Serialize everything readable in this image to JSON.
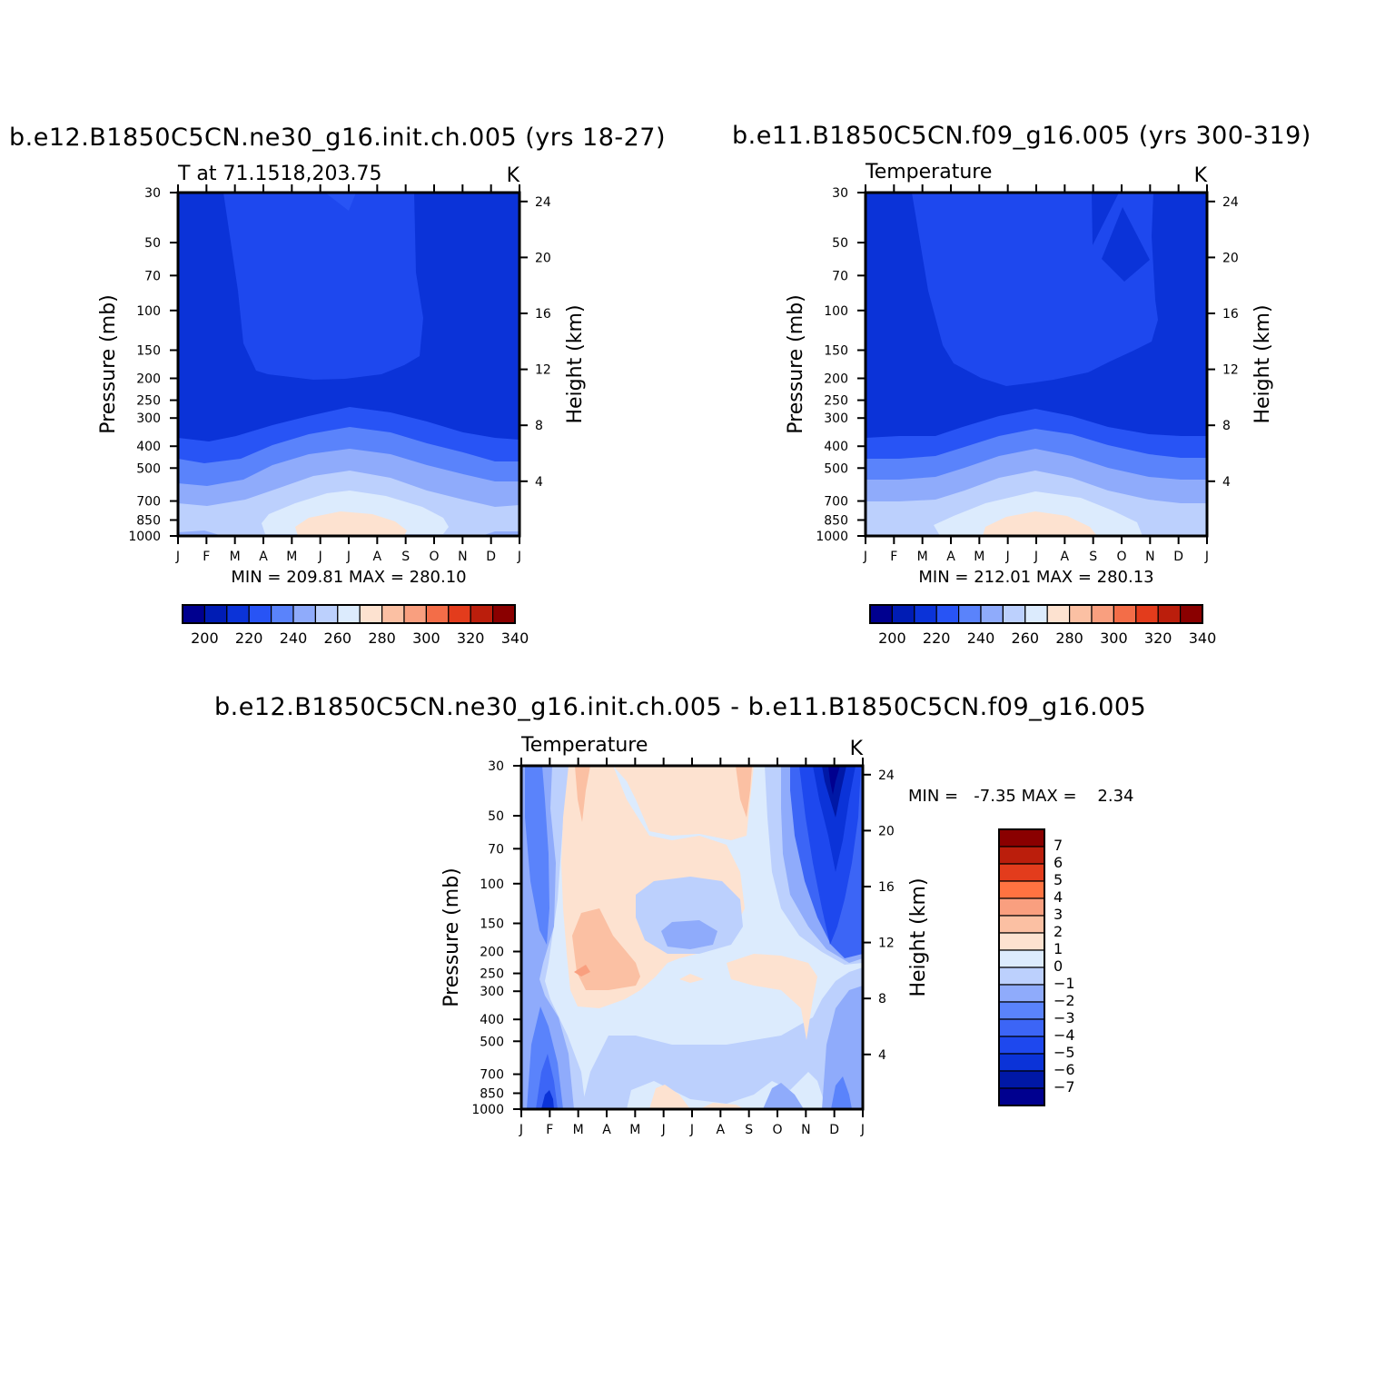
{
  "colors": {
    "temp_palette": [
      "#00008f",
      "#001cb4",
      "#0b33d8",
      "#2854f5",
      "#5a83fb",
      "#8fabfb",
      "#bcd0fd",
      "#dcebfd",
      "#fde2d0",
      "#fbc0a3",
      "#f99f7f",
      "#f36d48",
      "#e33c1c",
      "#bb1e0c",
      "#8a0000"
    ],
    "diff_palette": [
      "#00008f",
      "#0018a6",
      "#0b33d8",
      "#1e48ee",
      "#3c65f6",
      "#5a83fb",
      "#8fabfb",
      "#bcd0fd",
      "#dcebfd",
      "#fde2d0",
      "#fbc0a3",
      "#f99f7f",
      "#ff7341",
      "#e33c1c",
      "#bb1e0c",
      "#8a0000"
    ]
  },
  "chart_data": [
    {
      "id": "panel1",
      "type": "heatmap",
      "title": "b.e12.B1850C5CN.ne30_g16.init.ch.005 (yrs 18-27)",
      "left_label": "T at 71.1518,203.75",
      "right_label": "K",
      "ylabel": "Pressure (mb)",
      "ylabel_right": "Height (km)",
      "months": [
        "J",
        "F",
        "M",
        "A",
        "M",
        "J",
        "J",
        "A",
        "S",
        "O",
        "N",
        "D",
        "J"
      ],
      "pressure_ticks": [
        "30",
        "50",
        "70",
        "100",
        "150",
        "200",
        "250",
        "300",
        "400",
        "500",
        "700",
        "850",
        "1000"
      ],
      "height_ticks": [
        "24",
        "20",
        "16",
        "12",
        "8",
        "4"
      ],
      "stats": "MIN = 209.81  MAX = 280.10",
      "min": 209.81,
      "max": 280.1,
      "colorbar_labels": [
        "200",
        "220",
        "240",
        "260",
        "280",
        "300",
        "320",
        "340"
      ]
    },
    {
      "id": "panel2",
      "type": "heatmap",
      "title": "b.e11.B1850C5CN.f09_g16.005 (yrs 300-319)",
      "left_label": "Temperature",
      "right_label": "K",
      "ylabel": "Pressure (mb)",
      "ylabel_right": "Height (km)",
      "months": [
        "J",
        "F",
        "M",
        "A",
        "M",
        "J",
        "J",
        "A",
        "S",
        "O",
        "N",
        "D",
        "J"
      ],
      "pressure_ticks": [
        "30",
        "50",
        "70",
        "100",
        "150",
        "200",
        "250",
        "300",
        "400",
        "500",
        "700",
        "850",
        "1000"
      ],
      "height_ticks": [
        "24",
        "20",
        "16",
        "12",
        "8",
        "4"
      ],
      "stats": "MIN = 212.01  MAX = 280.13",
      "min": 212.01,
      "max": 280.13,
      "colorbar_labels": [
        "200",
        "220",
        "240",
        "260",
        "280",
        "300",
        "320",
        "340"
      ]
    },
    {
      "id": "panel3",
      "type": "heatmap",
      "title": "b.e12.B1850C5CN.ne30_g16.init.ch.005 - b.e11.B1850C5CN.f09_g16.005",
      "left_label": "Temperature",
      "right_label": "K",
      "ylabel": "Pressure (mb)",
      "ylabel_right": "Height (km)",
      "months": [
        "J",
        "F",
        "M",
        "A",
        "M",
        "J",
        "J",
        "A",
        "S",
        "O",
        "N",
        "D",
        "J"
      ],
      "pressure_ticks": [
        "30",
        "50",
        "70",
        "100",
        "150",
        "200",
        "250",
        "300",
        "400",
        "500",
        "700",
        "850",
        "1000"
      ],
      "height_ticks": [
        "24",
        "20",
        "16",
        "12",
        "8",
        "4"
      ],
      "stats": "MIN =   -7.35 MAX =    2.34",
      "min": -7.35,
      "max": 2.34,
      "colorbar_labels": [
        "7",
        "6",
        "5",
        "4",
        "3",
        "2",
        "1",
        "0",
        "-1",
        "-2",
        "-3",
        "-4",
        "-5",
        "-6",
        "-7"
      ]
    }
  ]
}
